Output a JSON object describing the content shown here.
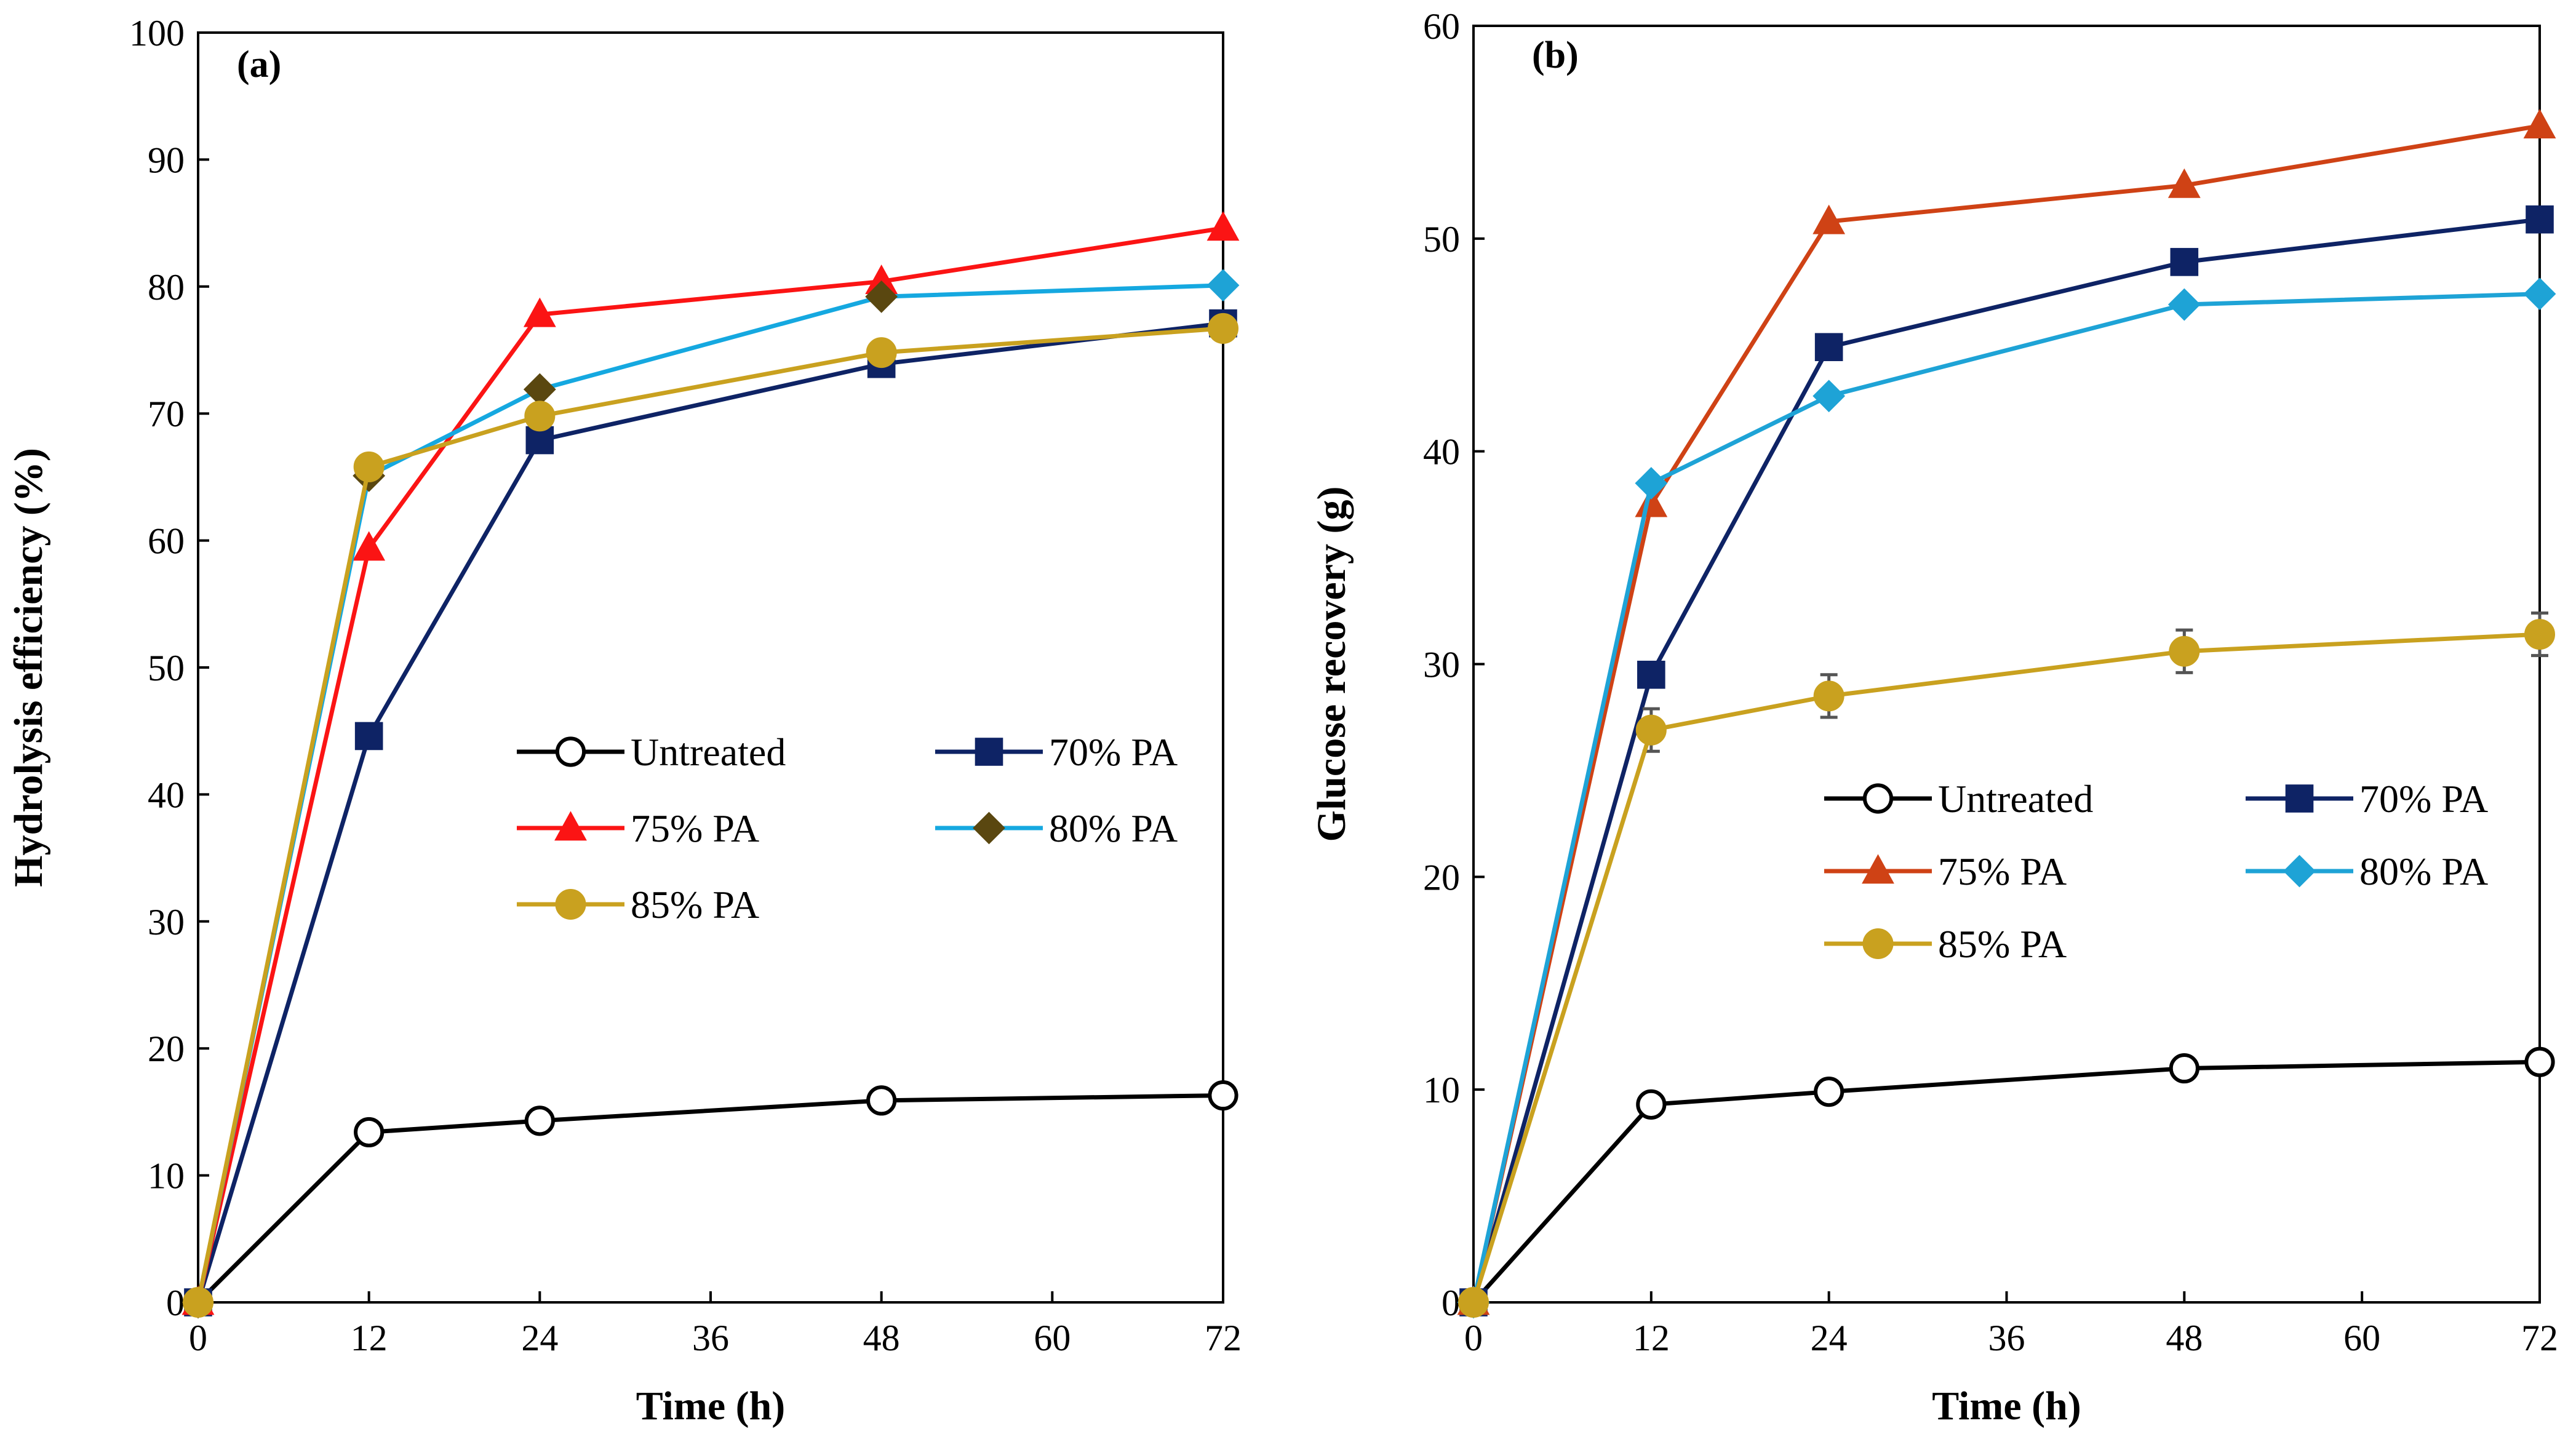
{
  "chart_data": [
    {
      "id": "a",
      "type": "line",
      "panel_label": "(a)",
      "xlabel": "Time (h)",
      "ylabel": "Hydrolysis efficiency (%)",
      "xlim": [
        0,
        72
      ],
      "ylim": [
        0,
        100
      ],
      "xticks": [
        0,
        12,
        24,
        36,
        48,
        60,
        72
      ],
      "yticks": [
        0,
        10,
        20,
        30,
        40,
        50,
        60,
        70,
        80,
        90,
        100
      ],
      "grid": false,
      "x": [
        0,
        12,
        24,
        48,
        72
      ],
      "series": [
        {
          "name": "Untreated",
          "color": "#000000",
          "marker": "open-circle",
          "values": [
            0,
            13.4,
            14.3,
            15.9,
            16.3
          ]
        },
        {
          "name": "70% PA",
          "color": "#0e2365",
          "marker": "square",
          "values": [
            0,
            44.6,
            67.9,
            73.9,
            77.1
          ]
        },
        {
          "name": "75% PA",
          "color": "#fb1414",
          "marker": "triangle",
          "values": [
            0,
            59.4,
            77.8,
            80.4,
            84.6
          ]
        },
        {
          "name": "80% PA",
          "color": "#15a8e0",
          "marker": "diamond",
          "marker_color": "#5a4710",
          "last_marker_color": "#1ea3d6",
          "values": [
            0,
            65.1,
            71.9,
            79.2,
            80.1
          ]
        },
        {
          "name": "85% PA",
          "color": "#c9a11f",
          "marker": "circle",
          "values": [
            0,
            65.8,
            69.8,
            74.8,
            76.7
          ]
        }
      ]
    },
    {
      "id": "b",
      "type": "line",
      "panel_label": "(b)",
      "xlabel": "Time (h)",
      "ylabel": "Glucose recovery (g)",
      "xlim": [
        0,
        72
      ],
      "ylim": [
        0,
        60
      ],
      "xticks": [
        0,
        12,
        24,
        36,
        48,
        60,
        72
      ],
      "yticks": [
        0,
        10,
        20,
        30,
        40,
        50,
        60
      ],
      "grid": false,
      "x": [
        0,
        12,
        24,
        48,
        72
      ],
      "series": [
        {
          "name": "Untreated",
          "color": "#000000",
          "marker": "open-circle",
          "values": [
            0,
            9.3,
            9.9,
            11.0,
            11.3
          ]
        },
        {
          "name": "70% PA",
          "color": "#0e2365",
          "marker": "square",
          "values": [
            0,
            29.5,
            44.9,
            48.9,
            50.9
          ]
        },
        {
          "name": "75% PA",
          "color": "#cf4215",
          "marker": "triangle",
          "values": [
            0,
            37.5,
            50.8,
            52.5,
            55.3
          ]
        },
        {
          "name": "80% PA",
          "color": "#1ea3d6",
          "marker": "diamond",
          "values": [
            0,
            38.5,
            42.6,
            46.9,
            47.4
          ]
        },
        {
          "name": "85% PA",
          "color": "#c9a11f",
          "marker": "circle",
          "values": [
            0,
            26.9,
            28.5,
            30.6,
            31.4
          ],
          "errors": [
            0,
            1.0,
            1.0,
            1.0,
            1.0
          ]
        }
      ]
    }
  ]
}
